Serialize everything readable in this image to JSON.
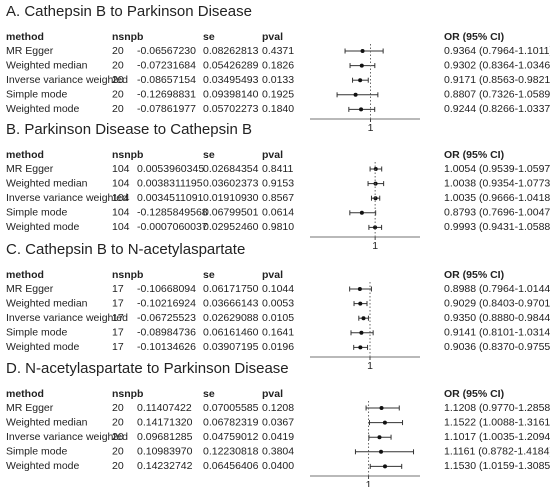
{
  "chart_data": [
    {
      "type": "forest",
      "title": "A. Cathepsin B to Parkinson Disease",
      "columns": [
        "method",
        "nsnp",
        "b",
        "se",
        "pval",
        "OR (95% CI)"
      ],
      "rows": [
        [
          "MR Egger",
          "20",
          "-0.06567230",
          "0.08262813",
          "0.4371"
        ],
        [
          "Weighted median",
          "20",
          "-0.07231684",
          "0.05426289",
          "0.1826"
        ],
        [
          "Inverse variance weighted",
          "20",
          "-0.08657154",
          "0.03495493",
          "0.0133"
        ],
        [
          "Simple mode",
          "20",
          "-0.12698831",
          "0.09398140",
          "0.1925"
        ],
        [
          "Weighted mode",
          "20",
          "-0.07861977",
          "0.05702273",
          "0.1840"
        ]
      ],
      "values": [
        0.9364,
        0.9302,
        0.9171,
        0.8807,
        0.9244
      ],
      "lower": [
        0.7964,
        0.8364,
        0.8563,
        0.7326,
        0.8266
      ],
      "upper": [
        1.1011,
        1.0346,
        0.9821,
        1.0589,
        1.0337
      ],
      "value_labels": [
        "0.9364 (0.7964-1.1011)",
        "0.9302 (0.8364-1.0346)",
        "0.9171 (0.8563-0.9821)",
        "0.8807 (0.7326-1.0589)",
        "0.9244 (0.8266-1.0337)"
      ],
      "xlim": [
        0.58,
        1.38
      ],
      "xticks": [
        1
      ]
    },
    {
      "type": "forest",
      "title": "B. Parkinson Disease to Cathepsin B",
      "columns": [
        "method",
        "nsnp",
        "b",
        "se",
        "pval",
        "OR (95% CI)"
      ],
      "rows": [
        [
          "MR Egger",
          "104",
          "0.0053960345",
          "0.02684354",
          "0.8411"
        ],
        [
          "Weighted median",
          "104",
          "0.0038311195",
          "0.03602373",
          "0.9153"
        ],
        [
          "Inverse variance weighted",
          "104",
          "0.0034511091",
          "0.01910930",
          "0.8567"
        ],
        [
          "Simple mode",
          "104",
          "-0.1285849568",
          "0.06799501",
          "0.0614"
        ],
        [
          "Weighted mode",
          "104",
          "-0.0007060037",
          "0.02952460",
          "0.9810"
        ]
      ],
      "values": [
        1.0054,
        1.0038,
        1.0035,
        0.8793,
        0.9993
      ],
      "lower": [
        0.9539,
        0.9354,
        0.9666,
        0.7696,
        0.9431
      ],
      "upper": [
        1.0597,
        1.0773,
        1.0418,
        1.0047,
        1.0588
      ],
      "value_labels": [
        "1.0054 (0.9539-1.0597)",
        "1.0038 (0.9354-1.0773)",
        "1.0035 (0.9666-1.0418)",
        "0.8793 (0.7696-1.0047)",
        "0.9993 (0.9431-1.0588)"
      ],
      "xlim": [
        0.48,
        1.39
      ],
      "xticks": [
        1
      ]
    },
    {
      "type": "forest",
      "title": "C. Cathepsin B to N-acetylaspartate",
      "columns": [
        "method",
        "nsnp",
        "b",
        "se",
        "pval",
        "OR (95% CI)"
      ],
      "rows": [
        [
          "MR Egger",
          "17",
          "-0.10668094",
          "0.06171750",
          "0.1044"
        ],
        [
          "Weighted median",
          "17",
          "-0.10216924",
          "0.03666143",
          "0.0053"
        ],
        [
          "Inverse variance weighted",
          "17",
          "-0.06725523",
          "0.02629088",
          "0.0105"
        ],
        [
          "Simple mode",
          "17",
          "-0.08984736",
          "0.06161460",
          "0.1641"
        ],
        [
          "Weighted mode",
          "17",
          "-0.10134626",
          "0.03907195",
          "0.0196"
        ]
      ],
      "values": [
        0.8988,
        0.9029,
        0.935,
        0.9141,
        0.9036
      ],
      "lower": [
        0.7964,
        0.8403,
        0.888,
        0.8101,
        0.837
      ],
      "upper": [
        1.0144,
        0.9701,
        0.9844,
        1.0314,
        0.9755
      ],
      "value_labels": [
        "0.8988 (0.7964-1.0144)",
        "0.9029 (0.8403-0.9701)",
        "0.9350 (0.8880-0.9844)",
        "0.9141 (0.8101-1.0314)",
        "0.9036 (0.8370-0.9755)"
      ],
      "xlim": [
        0.48,
        1.48
      ],
      "xticks": [
        1
      ]
    },
    {
      "type": "forest",
      "title": "D. N-acetylaspartate to Parkinson Disease",
      "columns": [
        "method",
        "nsnp",
        "b",
        "se",
        "pval",
        "OR (95% CI)"
      ],
      "rows": [
        [
          "MR Egger",
          "20",
          "0.11407422",
          "0.07005585",
          "0.1208"
        ],
        [
          "Weighted median",
          "20",
          "0.14171320",
          "0.06782319",
          "0.0367"
        ],
        [
          "Inverse variance weighted",
          "20",
          "0.09681285",
          "0.04759012",
          "0.0419"
        ],
        [
          "Simple mode",
          "20",
          "0.10983970",
          "0.12230818",
          "0.3804"
        ],
        [
          "Weighted mode",
          "20",
          "0.14232742",
          "0.06456406",
          "0.0400"
        ]
      ],
      "values": [
        1.1208,
        1.1522,
        1.1017,
        1.1161,
        1.153
      ],
      "lower": [
        0.977,
        1.0088,
        1.0035,
        0.8782,
        1.0159
      ],
      "upper": [
        1.2858,
        1.3161,
        1.2094,
        1.4184,
        1.3085
      ],
      "value_labels": [
        "1.1208 (0.9770-1.2858)",
        "1.1522 (1.0088-1.3161)",
        "1.1017 (1.0035-1.2094)",
        "1.1161 (0.8782-1.4184)",
        "1.1530 (1.0159-1.3085)"
      ],
      "xlim": [
        0.53,
        1.46
      ],
      "xticks": [
        1
      ]
    }
  ]
}
